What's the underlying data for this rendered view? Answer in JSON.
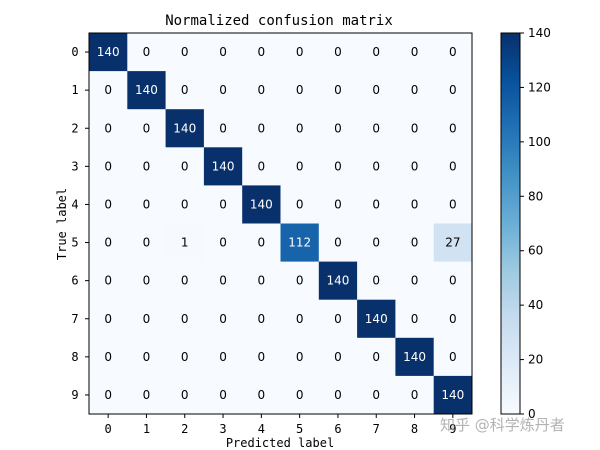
{
  "chart_data": {
    "type": "heatmap",
    "title": "Normalized confusion matrix",
    "xlabel": "Predicted label",
    "ylabel": "True label",
    "x_ticks": [
      "0",
      "1",
      "2",
      "3",
      "4",
      "5",
      "6",
      "7",
      "8",
      "9"
    ],
    "y_ticks": [
      "0",
      "1",
      "2",
      "3",
      "4",
      "5",
      "6",
      "7",
      "8",
      "9"
    ],
    "matrix": [
      [
        140,
        0,
        0,
        0,
        0,
        0,
        0,
        0,
        0,
        0
      ],
      [
        0,
        140,
        0,
        0,
        0,
        0,
        0,
        0,
        0,
        0
      ],
      [
        0,
        0,
        140,
        0,
        0,
        0,
        0,
        0,
        0,
        0
      ],
      [
        0,
        0,
        0,
        140,
        0,
        0,
        0,
        0,
        0,
        0
      ],
      [
        0,
        0,
        0,
        0,
        140,
        0,
        0,
        0,
        0,
        0
      ],
      [
        0,
        0,
        1,
        0,
        0,
        112,
        0,
        0,
        0,
        27
      ],
      [
        0,
        0,
        0,
        0,
        0,
        0,
        140,
        0,
        0,
        0
      ],
      [
        0,
        0,
        0,
        0,
        0,
        0,
        0,
        140,
        0,
        0
      ],
      [
        0,
        0,
        0,
        0,
        0,
        0,
        0,
        0,
        140,
        0
      ],
      [
        0,
        0,
        0,
        0,
        0,
        0,
        0,
        0,
        0,
        140
      ]
    ],
    "colorbar": {
      "vmin": 0,
      "vmax": 140,
      "ticks": [
        0,
        20,
        40,
        60,
        80,
        100,
        120,
        140
      ],
      "colormap": "Blues"
    }
  },
  "watermark": "知乎 @科学炼丹者"
}
